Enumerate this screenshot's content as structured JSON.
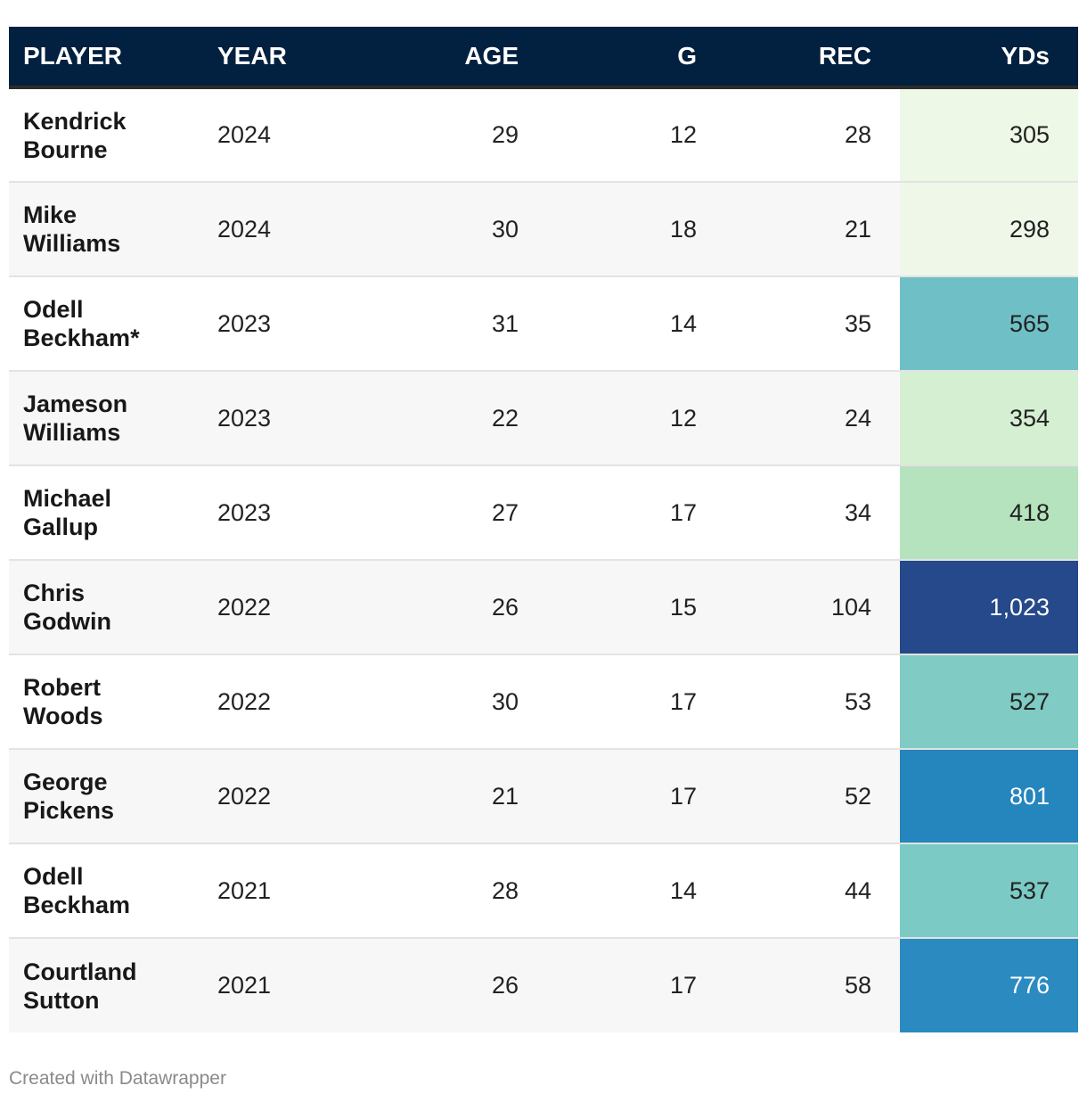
{
  "chart_data": {
    "type": "table",
    "columns": [
      "PLAYER",
      "YEAR",
      "AGE",
      "G",
      "REC",
      "YDs"
    ],
    "rows": [
      {
        "player": "Kendrick Bourne",
        "year": "2024",
        "age": "29",
        "g": "12",
        "rec": "28",
        "yds": "305",
        "yds_value": 305,
        "yds_color": "#eef8e6",
        "yds_text_color": "#222222"
      },
      {
        "player": "Mike Williams",
        "year": "2024",
        "age": "30",
        "g": "18",
        "rec": "21",
        "yds": "298",
        "yds_value": 298,
        "yds_color": "#eff8e8",
        "yds_text_color": "#222222"
      },
      {
        "player": "Odell Beckham*",
        "year": "2023",
        "age": "31",
        "g": "14",
        "rec": "35",
        "yds": "565",
        "yds_value": 565,
        "yds_color": "#6fc0c6",
        "yds_text_color": "#222222"
      },
      {
        "player": "Jameson Williams",
        "year": "2023",
        "age": "22",
        "g": "12",
        "rec": "24",
        "yds": "354",
        "yds_value": 354,
        "yds_color": "#d5efd2",
        "yds_text_color": "#222222"
      },
      {
        "player": "Michael Gallup",
        "year": "2023",
        "age": "27",
        "g": "17",
        "rec": "34",
        "yds": "418",
        "yds_value": 418,
        "yds_color": "#b5e3bd",
        "yds_text_color": "#222222"
      },
      {
        "player": "Chris Godwin",
        "year": "2022",
        "age": "26",
        "g": "15",
        "rec": "104",
        "yds": "1,023",
        "yds_value": 1023,
        "yds_color": "#25498a",
        "yds_text_color": "#ffffff"
      },
      {
        "player": "Robert Woods",
        "year": "2022",
        "age": "30",
        "g": "17",
        "rec": "53",
        "yds": "527",
        "yds_value": 527,
        "yds_color": "#80cbc4",
        "yds_text_color": "#222222"
      },
      {
        "player": "George Pickens",
        "year": "2022",
        "age": "21",
        "g": "17",
        "rec": "52",
        "yds": "801",
        "yds_value": 801,
        "yds_color": "#2585bd",
        "yds_text_color": "#ffffff"
      },
      {
        "player": "Odell Beckham",
        "year": "2021",
        "age": "28",
        "g": "14",
        "rec": "44",
        "yds": "537",
        "yds_value": 537,
        "yds_color": "#7bcac5",
        "yds_text_color": "#222222"
      },
      {
        "player": "Courtland Sutton",
        "year": "2021",
        "age": "26",
        "g": "17",
        "rec": "58",
        "yds": "776",
        "yds_value": 776,
        "yds_color": "#2b8bc1",
        "yds_text_color": "#ffffff"
      }
    ]
  },
  "footer": {
    "credit": "Created with Datawrapper"
  }
}
